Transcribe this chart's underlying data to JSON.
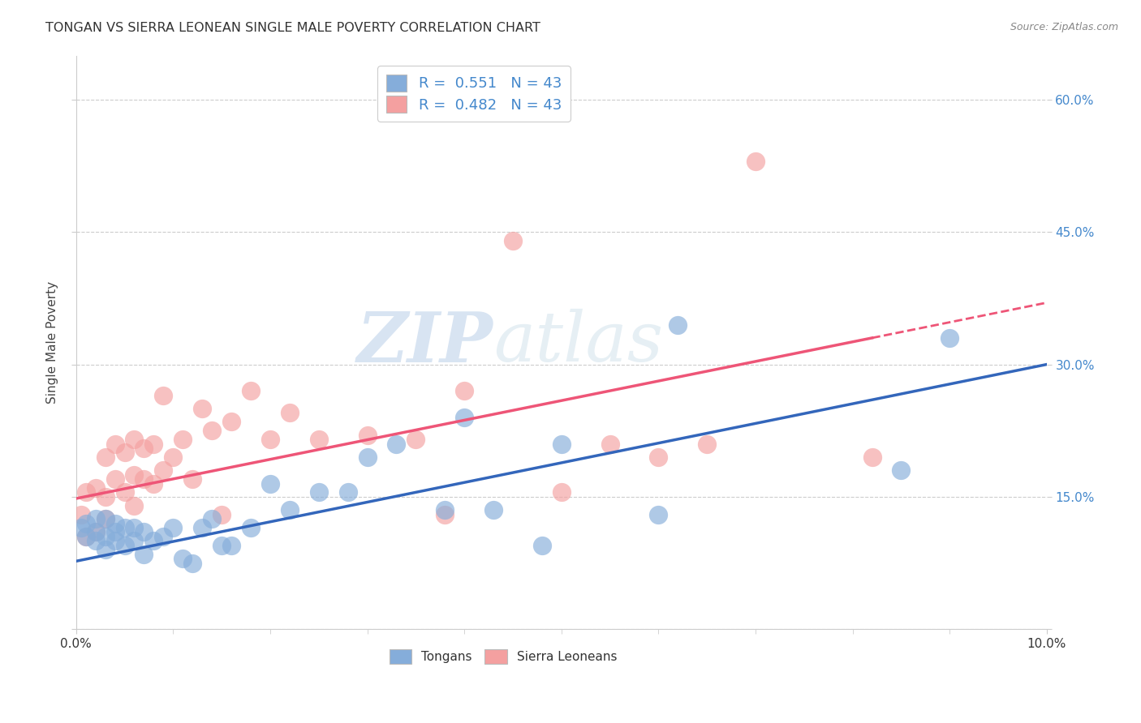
{
  "title": "TONGAN VS SIERRA LEONEAN SINGLE MALE POVERTY CORRELATION CHART",
  "source": "Source: ZipAtlas.com",
  "ylabel": "Single Male Poverty",
  "legend_tongans": "Tongans",
  "legend_sierraleoneans": "Sierra Leoneans",
  "r_tongans": "0.551",
  "n_tongans": "43",
  "r_sierraleonean": "0.482",
  "n_sierraleonean": "43",
  "xlim": [
    0.0,
    0.1
  ],
  "ylim": [
    0.0,
    0.65
  ],
  "xticks": [
    0.0,
    0.1
  ],
  "xtick_labels": [
    "0.0%",
    "10.0%"
  ],
  "yticks": [
    0.0,
    0.15,
    0.3,
    0.45,
    0.6
  ],
  "ytick_labels_right": [
    "",
    "15.0%",
    "30.0%",
    "45.0%",
    "60.0%"
  ],
  "color_tongans": "#85ADDA",
  "color_sierraleonean": "#F4A0A0",
  "color_line_tongans": "#3366BB",
  "color_line_sierraleonean": "#EE5577",
  "background": "#ffffff",
  "grid_color": "#cccccc",
  "line_tongans_x0": 0.0,
  "line_tongans_y0": 0.077,
  "line_tongans_x1": 0.1,
  "line_tongans_y1": 0.3,
  "line_sl_x0": 0.0,
  "line_sl_y0": 0.148,
  "line_sl_x1": 0.082,
  "line_sl_y1": 0.33,
  "line_sl_dash_x0": 0.082,
  "line_sl_dash_x1": 0.1,
  "tongans_x": [
    0.0005,
    0.001,
    0.001,
    0.002,
    0.002,
    0.002,
    0.003,
    0.003,
    0.003,
    0.004,
    0.004,
    0.004,
    0.005,
    0.005,
    0.006,
    0.006,
    0.007,
    0.007,
    0.008,
    0.009,
    0.01,
    0.011,
    0.012,
    0.013,
    0.014,
    0.015,
    0.016,
    0.018,
    0.02,
    0.022,
    0.025,
    0.028,
    0.03,
    0.033,
    0.038,
    0.04,
    0.043,
    0.048,
    0.05,
    0.06,
    0.062,
    0.085,
    0.09
  ],
  "tongans_y": [
    0.115,
    0.105,
    0.12,
    0.1,
    0.11,
    0.125,
    0.09,
    0.105,
    0.125,
    0.1,
    0.11,
    0.12,
    0.095,
    0.115,
    0.1,
    0.115,
    0.085,
    0.11,
    0.1,
    0.105,
    0.115,
    0.08,
    0.075,
    0.115,
    0.125,
    0.095,
    0.095,
    0.115,
    0.165,
    0.135,
    0.155,
    0.155,
    0.195,
    0.21,
    0.135,
    0.24,
    0.135,
    0.095,
    0.21,
    0.13,
    0.345,
    0.18,
    0.33
  ],
  "sierraleonean_x": [
    0.0005,
    0.001,
    0.001,
    0.002,
    0.002,
    0.003,
    0.003,
    0.003,
    0.004,
    0.004,
    0.005,
    0.005,
    0.006,
    0.006,
    0.006,
    0.007,
    0.007,
    0.008,
    0.008,
    0.009,
    0.01,
    0.011,
    0.012,
    0.014,
    0.015,
    0.016,
    0.02,
    0.022,
    0.025,
    0.03,
    0.035,
    0.038,
    0.04,
    0.045,
    0.05,
    0.055,
    0.06,
    0.065,
    0.07,
    0.013,
    0.009,
    0.018,
    0.082
  ],
  "sierraleonean_y": [
    0.13,
    0.105,
    0.155,
    0.11,
    0.16,
    0.125,
    0.15,
    0.195,
    0.17,
    0.21,
    0.155,
    0.2,
    0.14,
    0.175,
    0.215,
    0.17,
    0.205,
    0.165,
    0.21,
    0.18,
    0.195,
    0.215,
    0.17,
    0.225,
    0.13,
    0.235,
    0.215,
    0.245,
    0.215,
    0.22,
    0.215,
    0.13,
    0.27,
    0.44,
    0.155,
    0.21,
    0.195,
    0.21,
    0.53,
    0.25,
    0.265,
    0.27,
    0.195
  ],
  "watermark_zip": "ZIP",
  "watermark_atlas": "atlas"
}
